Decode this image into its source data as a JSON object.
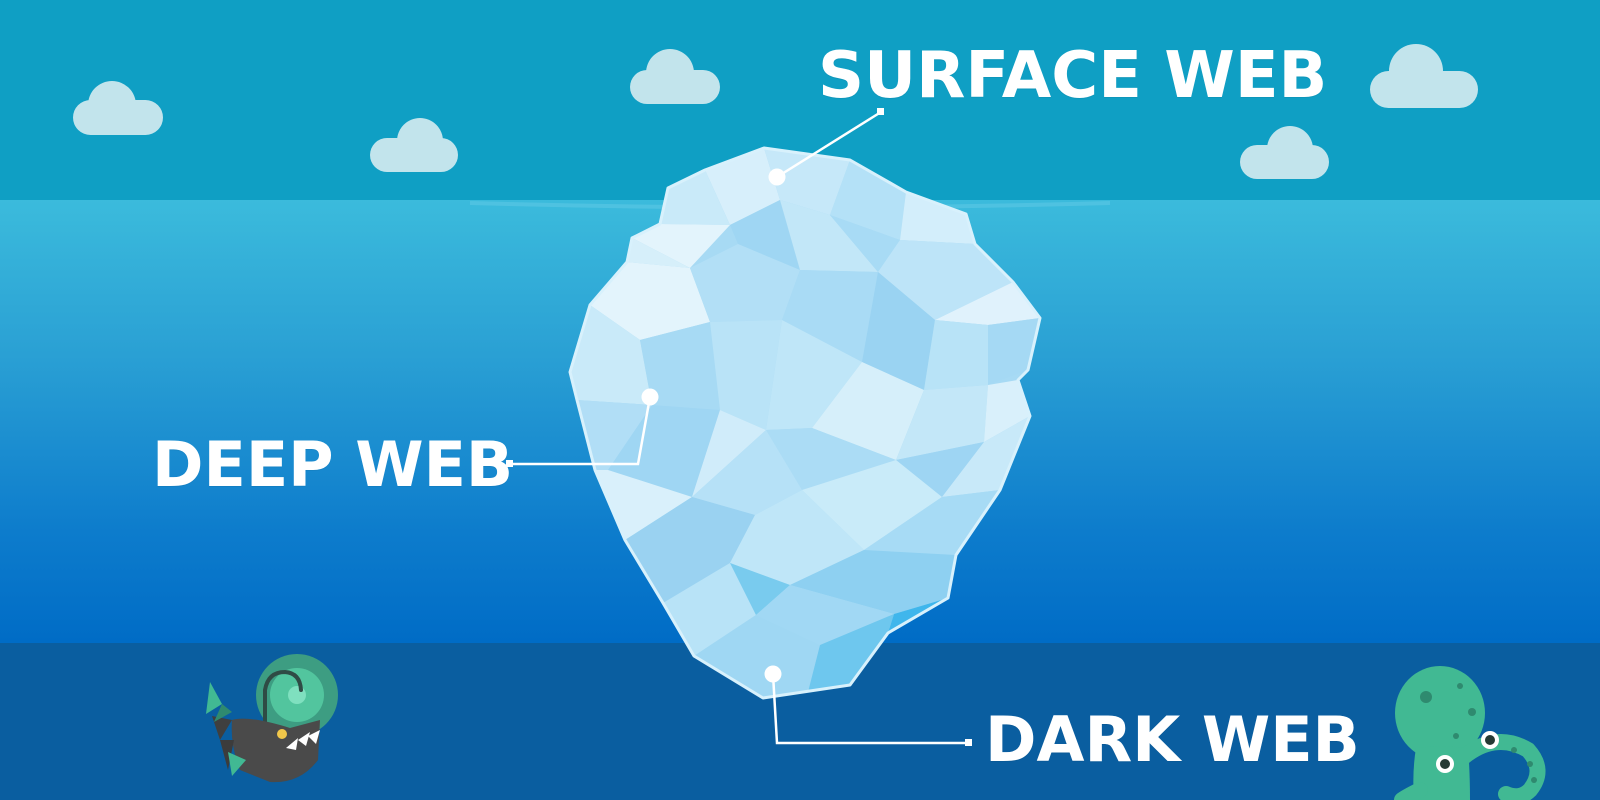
{
  "labels": {
    "surface": "SURFACE WEB",
    "deep": "DEEP WEB",
    "dark": "DARK WEB"
  },
  "colors": {
    "sky": "#0f9fc4",
    "sea_top": "#35b6d9",
    "sea_mid": "#1a8fd0",
    "sea_bottom": "#006bc6",
    "deep_zone": "#0a5ea0",
    "cloud": "#c2e4ec",
    "ice_light": "#e3f4fc",
    "ice_mid": "#b6e0f7",
    "ice_dark": "#6ec7ee",
    "pointer": "#ffffff",
    "octopus": "#41b993",
    "anglerfish": "#4a4a4a",
    "angler_light": "#3d9d82"
  },
  "icons": {
    "cloud": "cloud-icon",
    "anglerfish": "anglerfish-icon",
    "octopus": "octopus-icon"
  }
}
